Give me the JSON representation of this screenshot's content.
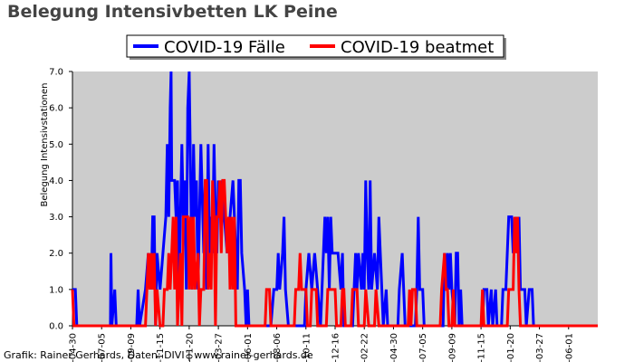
{
  "chart_data": {
    "type": "line",
    "title": "Belegung Intensivbetten LK Peine",
    "ylabel": "Belegung Intensivstationen",
    "xlabel": "",
    "ylim": [
      0,
      7
    ],
    "yticks": [
      "0.0",
      "1.0",
      "2.0",
      "3.0",
      "4.0",
      "5.0",
      "6.0",
      "7.0"
    ],
    "grid": false,
    "legend_position": "top",
    "plot_background": "#cccccc",
    "x_tick_labels": [
      "-04-30",
      "-07-05",
      "-09-09",
      "-11-15",
      "-01-20",
      "-03-27",
      "-06-01",
      "-08-06",
      "-10-11",
      "-12-16",
      "-02-22",
      "-04-30",
      "-07-05",
      "-09-09",
      "-11-15",
      "-01-20",
      "-03-27",
      "-06-01"
    ],
    "x_domain": [
      0,
      18
    ],
    "series": [
      {
        "name": "COVID-19 Fälle",
        "color": "#0000ff",
        "points": [
          [
            0,
            1
          ],
          [
            0.1,
            1
          ],
          [
            0.15,
            0
          ],
          [
            1.3,
            0
          ],
          [
            1.32,
            2
          ],
          [
            1.35,
            0
          ],
          [
            1.45,
            1
          ],
          [
            1.5,
            0
          ],
          [
            2.2,
            0
          ],
          [
            2.25,
            1
          ],
          [
            2.3,
            0
          ],
          [
            2.5,
            1
          ],
          [
            2.6,
            2
          ],
          [
            2.7,
            1
          ],
          [
            2.75,
            3
          ],
          [
            2.8,
            3
          ],
          [
            2.85,
            0
          ],
          [
            2.9,
            2
          ],
          [
            3.0,
            1
          ],
          [
            3.1,
            2
          ],
          [
            3.2,
            3
          ],
          [
            3.25,
            5
          ],
          [
            3.3,
            3
          ],
          [
            3.35,
            6
          ],
          [
            3.38,
            7
          ],
          [
            3.4,
            4
          ],
          [
            3.5,
            4
          ],
          [
            3.55,
            3
          ],
          [
            3.6,
            4
          ],
          [
            3.65,
            1
          ],
          [
            3.75,
            5
          ],
          [
            3.8,
            3
          ],
          [
            3.85,
            4
          ],
          [
            3.9,
            1
          ],
          [
            3.95,
            6
          ],
          [
            4.0,
            7
          ],
          [
            4.05,
            4
          ],
          [
            4.1,
            1
          ],
          [
            4.15,
            5
          ],
          [
            4.2,
            3
          ],
          [
            4.25,
            4
          ],
          [
            4.3,
            1
          ],
          [
            4.4,
            5
          ],
          [
            4.5,
            2
          ],
          [
            4.55,
            4
          ],
          [
            4.6,
            1
          ],
          [
            4.65,
            5
          ],
          [
            4.7,
            2
          ],
          [
            4.75,
            3
          ],
          [
            4.8,
            2
          ],
          [
            4.85,
            5
          ],
          [
            4.9,
            3
          ],
          [
            4.95,
            2
          ],
          [
            5.0,
            4
          ],
          [
            5.05,
            3
          ],
          [
            5.1,
            4
          ],
          [
            5.2,
            3
          ],
          [
            5.3,
            2
          ],
          [
            5.4,
            3
          ],
          [
            5.5,
            4
          ],
          [
            5.6,
            2
          ],
          [
            5.65,
            1
          ],
          [
            5.7,
            4
          ],
          [
            5.75,
            4
          ],
          [
            5.8,
            2
          ],
          [
            5.9,
            1
          ],
          [
            5.95,
            0
          ],
          [
            6.0,
            1
          ],
          [
            6.05,
            0
          ],
          [
            6.8,
            0
          ],
          [
            6.9,
            1
          ],
          [
            7.0,
            1
          ],
          [
            7.05,
            2
          ],
          [
            7.1,
            1
          ],
          [
            7.2,
            2
          ],
          [
            7.25,
            3
          ],
          [
            7.3,
            1
          ],
          [
            7.4,
            0
          ],
          [
            7.95,
            0
          ],
          [
            8.0,
            1
          ],
          [
            8.1,
            2
          ],
          [
            8.2,
            1
          ],
          [
            8.3,
            2
          ],
          [
            8.4,
            1
          ],
          [
            8.5,
            0
          ],
          [
            8.6,
            2
          ],
          [
            8.65,
            3
          ],
          [
            8.7,
            2
          ],
          [
            8.75,
            3
          ],
          [
            8.8,
            1
          ],
          [
            8.85,
            3
          ],
          [
            8.9,
            2
          ],
          [
            9.0,
            2
          ],
          [
            9.1,
            2
          ],
          [
            9.2,
            1
          ],
          [
            9.25,
            2
          ],
          [
            9.3,
            0
          ],
          [
            9.6,
            0
          ],
          [
            9.7,
            2
          ],
          [
            9.75,
            1
          ],
          [
            9.8,
            2
          ],
          [
            9.9,
            1
          ],
          [
            9.95,
            2
          ],
          [
            10.0,
            1
          ],
          [
            10.05,
            4
          ],
          [
            10.1,
            2
          ],
          [
            10.15,
            1
          ],
          [
            10.2,
            4
          ],
          [
            10.25,
            1
          ],
          [
            10.35,
            2
          ],
          [
            10.45,
            1
          ],
          [
            10.5,
            3
          ],
          [
            10.55,
            2
          ],
          [
            10.6,
            1
          ],
          [
            10.65,
            0
          ],
          [
            10.75,
            1
          ],
          [
            10.8,
            0
          ],
          [
            11.15,
            0
          ],
          [
            11.2,
            1
          ],
          [
            11.3,
            2
          ],
          [
            11.35,
            1
          ],
          [
            11.4,
            0
          ],
          [
            11.75,
            0
          ],
          [
            11.8,
            1
          ],
          [
            11.85,
            3
          ],
          [
            11.9,
            1
          ],
          [
            12.0,
            1
          ],
          [
            12.05,
            0
          ],
          [
            12.7,
            0
          ],
          [
            12.75,
            2
          ],
          [
            12.8,
            1
          ],
          [
            12.85,
            2
          ],
          [
            12.9,
            1
          ],
          [
            12.95,
            2
          ],
          [
            13.0,
            1
          ],
          [
            13.1,
            0
          ],
          [
            13.15,
            2
          ],
          [
            13.2,
            2
          ],
          [
            13.25,
            0
          ],
          [
            13.3,
            1
          ],
          [
            13.35,
            0
          ],
          [
            14.05,
            0
          ],
          [
            14.1,
            1
          ],
          [
            14.2,
            1
          ],
          [
            14.25,
            0
          ],
          [
            14.35,
            1
          ],
          [
            14.4,
            0
          ],
          [
            14.5,
            1
          ],
          [
            14.55,
            0
          ],
          [
            14.7,
            0
          ],
          [
            14.75,
            1
          ],
          [
            14.85,
            1
          ],
          [
            14.9,
            2
          ],
          [
            14.95,
            3
          ],
          [
            15.05,
            3
          ],
          [
            15.1,
            2
          ],
          [
            15.2,
            3
          ],
          [
            15.25,
            2
          ],
          [
            15.3,
            3
          ],
          [
            15.35,
            1
          ],
          [
            15.5,
            1
          ],
          [
            15.55,
            0
          ],
          [
            15.65,
            1
          ],
          [
            15.75,
            1
          ],
          [
            15.8,
            0
          ],
          [
            18,
            0
          ]
        ]
      },
      {
        "name": "COVID-19 beatmet",
        "color": "#ff0000",
        "points": [
          [
            0,
            1
          ],
          [
            0.05,
            0
          ],
          [
            2.5,
            0
          ],
          [
            2.55,
            1
          ],
          [
            2.6,
            2
          ],
          [
            2.65,
            1
          ],
          [
            2.7,
            2
          ],
          [
            2.75,
            1
          ],
          [
            2.8,
            2
          ],
          [
            2.85,
            0
          ],
          [
            2.9,
            1
          ],
          [
            3.0,
            0
          ],
          [
            3.1,
            0
          ],
          [
            3.15,
            1
          ],
          [
            3.25,
            1
          ],
          [
            3.3,
            2
          ],
          [
            3.35,
            1
          ],
          [
            3.4,
            2
          ],
          [
            3.45,
            3
          ],
          [
            3.5,
            1
          ],
          [
            3.55,
            3
          ],
          [
            3.6,
            0
          ],
          [
            3.7,
            2
          ],
          [
            3.75,
            0
          ],
          [
            3.8,
            3
          ],
          [
            3.95,
            3
          ],
          [
            4.0,
            1
          ],
          [
            4.05,
            3
          ],
          [
            4.1,
            1
          ],
          [
            4.15,
            3
          ],
          [
            4.2,
            1
          ],
          [
            4.3,
            2
          ],
          [
            4.35,
            0
          ],
          [
            4.4,
            1
          ],
          [
            4.5,
            1
          ],
          [
            4.55,
            4
          ],
          [
            4.6,
            4
          ],
          [
            4.65,
            1
          ],
          [
            4.7,
            2
          ],
          [
            4.75,
            1
          ],
          [
            4.8,
            4
          ],
          [
            4.85,
            3
          ],
          [
            4.9,
            0
          ],
          [
            4.95,
            3
          ],
          [
            5.0,
            3
          ],
          [
            5.05,
            4
          ],
          [
            5.1,
            2
          ],
          [
            5.15,
            4
          ],
          [
            5.2,
            4
          ],
          [
            5.25,
            3
          ],
          [
            5.3,
            2
          ],
          [
            5.35,
            3
          ],
          [
            5.4,
            1
          ],
          [
            5.45,
            3
          ],
          [
            5.5,
            1
          ],
          [
            5.55,
            3
          ],
          [
            5.6,
            0
          ],
          [
            6.6,
            0
          ],
          [
            6.65,
            1
          ],
          [
            6.75,
            1
          ],
          [
            6.8,
            0
          ],
          [
            7.6,
            0
          ],
          [
            7.65,
            1
          ],
          [
            7.75,
            1
          ],
          [
            7.8,
            2
          ],
          [
            7.85,
            1
          ],
          [
            7.9,
            1
          ],
          [
            8.0,
            1
          ],
          [
            8.05,
            0
          ],
          [
            8.15,
            0
          ],
          [
            8.2,
            1
          ],
          [
            8.35,
            1
          ],
          [
            8.4,
            0
          ],
          [
            8.7,
            0
          ],
          [
            8.75,
            1
          ],
          [
            9.0,
            1
          ],
          [
            9.05,
            0
          ],
          [
            9.2,
            0
          ],
          [
            9.25,
            1
          ],
          [
            9.3,
            1
          ],
          [
            9.35,
            0
          ],
          [
            9.55,
            0
          ],
          [
            9.6,
            1
          ],
          [
            9.75,
            1
          ],
          [
            9.8,
            0
          ],
          [
            10.0,
            0
          ],
          [
            10.05,
            1
          ],
          [
            10.15,
            0
          ],
          [
            10.35,
            0
          ],
          [
            10.4,
            1
          ],
          [
            10.5,
            0
          ],
          [
            11.5,
            0
          ],
          [
            11.55,
            1
          ],
          [
            11.6,
            0
          ],
          [
            11.65,
            1
          ],
          [
            11.75,
            1
          ],
          [
            11.8,
            0
          ],
          [
            12.6,
            0
          ],
          [
            12.65,
            1
          ],
          [
            12.75,
            2
          ],
          [
            12.8,
            1
          ],
          [
            12.85,
            1
          ],
          [
            12.9,
            0
          ],
          [
            13.0,
            0
          ],
          [
            13.05,
            1
          ],
          [
            13.1,
            0
          ],
          [
            14.0,
            0
          ],
          [
            14.05,
            1
          ],
          [
            14.1,
            0
          ],
          [
            14.9,
            0
          ],
          [
            14.95,
            1
          ],
          [
            15.05,
            1
          ],
          [
            15.1,
            1
          ],
          [
            15.15,
            3
          ],
          [
            15.2,
            2
          ],
          [
            15.25,
            3
          ],
          [
            15.3,
            1
          ],
          [
            15.35,
            0
          ],
          [
            18,
            0
          ]
        ]
      }
    ]
  },
  "credit": "Grafik: Rainer Gerhards, Daten: DIVI | www.rainer-gerhards.de"
}
